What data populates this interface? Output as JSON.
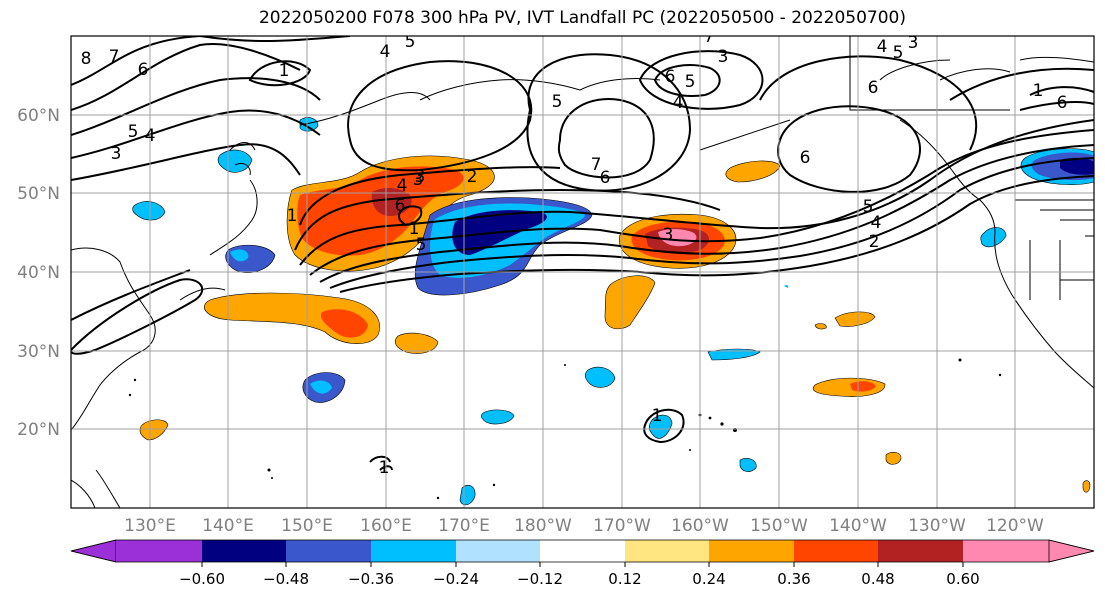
{
  "title": "2022050200 F078 300 hPa PV, IVT Landfall PC (2022050500 - 2022050700)",
  "lat_labels": [
    "60°N",
    "50°N",
    "40°N",
    "30°N",
    "20°N"
  ],
  "lon_labels": [
    "130°E",
    "140°E",
    "150°E",
    "160°E",
    "170°E",
    "180°W",
    "170°W",
    "160°W",
    "150°W",
    "140°W",
    "130°W",
    "120°W"
  ],
  "colorbar": {
    "ticks": [
      "−0.60",
      "−0.48",
      "−0.36",
      "−0.24",
      "−0.12",
      "0.12",
      "0.24",
      "0.36",
      "0.48",
      "0.60"
    ],
    "colors": [
      "#9b30d9",
      "#000080",
      "#3a58cc",
      "#00bfff",
      "#b0e2ff",
      "#ffffff",
      "#ffe680",
      "#ffa500",
      "#ff4500",
      "#b22222",
      "#ff88b0"
    ]
  },
  "contour_labels": [
    "1",
    "8",
    "7",
    "6",
    "5",
    "4",
    "3",
    "5",
    "4",
    "3",
    "6",
    "5",
    "4",
    "3",
    "2",
    "1",
    "6",
    "7",
    "1",
    "5",
    "3",
    "5",
    "6",
    "7",
    "4",
    "3",
    "6",
    "6",
    "5",
    "4",
    "2",
    "5",
    "4",
    "3",
    "6",
    "1",
    "1",
    "1"
  ],
  "colors": {
    "frame": "#000000",
    "grid": "#a0a0a0",
    "tick_text": "#808080"
  }
}
